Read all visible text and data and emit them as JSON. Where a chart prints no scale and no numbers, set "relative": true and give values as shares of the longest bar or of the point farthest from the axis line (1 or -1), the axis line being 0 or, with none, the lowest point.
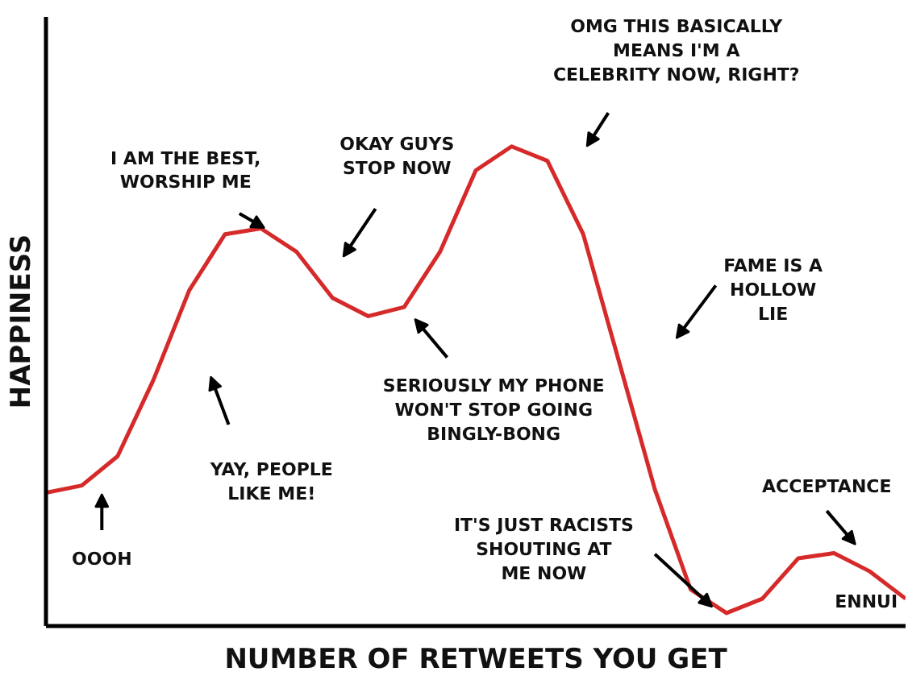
{
  "chart_data": {
    "type": "line",
    "relative": true,
    "xlabel": "NUMBER OF RETWEETS YOU GET",
    "ylabel": "HAPPINESS",
    "categories": [
      null,
      null,
      null,
      null,
      null,
      null,
      null,
      null,
      null,
      null,
      null,
      null,
      null,
      null,
      null,
      null,
      null,
      null,
      null,
      null,
      null,
      null,
      null,
      null,
      null
    ],
    "series": [
      {
        "color": "#d62a2a",
        "values": [
          0.278,
          0.293,
          0.354,
          0.513,
          0.7,
          0.817,
          0.829,
          0.78,
          0.684,
          0.646,
          0.665,
          0.78,
          0.95,
          1.0,
          0.97,
          0.817,
          0.551,
          0.285,
          0.076,
          0.027,
          0.057,
          0.141,
          0.152,
          0.114,
          0.057
        ]
      }
    ],
    "annotations": [
      "OOOH",
      "YAY, PEOPLE\nLIKE ME!",
      "I AM THE BEST,\nWORSHIP ME",
      "OKAY GUYS\nSTOP NOW",
      "SERIOUSLY MY PHONE\nWON'T STOP GOING\nBINGLY-BONG",
      "OMG THIS BASICALLY\nMEANS I'M A\nCELEBRITY NOW, RIGHT?",
      "FAME IS A\nHOLLOW\nLIE",
      "IT'S JUST RACISTS\nSHOUTING AT\nME NOW",
      "ACCEPTANCE",
      "ENNUI"
    ],
    "grid": false
  }
}
